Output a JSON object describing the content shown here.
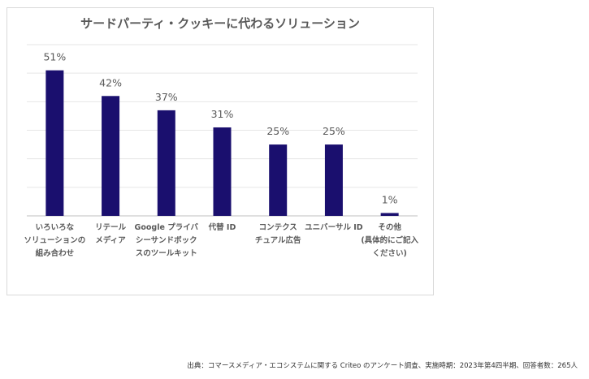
{
  "chart_data": {
    "type": "bar",
    "title": "サードパーティ・クッキーに代わるソリューション",
    "categories": [
      [
        "いろいろな",
        "ソリューションの",
        "組み合わせ"
      ],
      [
        "リテール",
        "メディア"
      ],
      [
        "Google プライバ",
        "シーサンドボック",
        "スのツールキット"
      ],
      [
        "代替 ID"
      ],
      [
        "コンテクス",
        "チュアル広告"
      ],
      [
        "ユニバーサル ID"
      ],
      [
        "その他",
        "(具体的にご記入",
        "ください)"
      ]
    ],
    "values": [
      51,
      42,
      37,
      31,
      25,
      25,
      1
    ],
    "value_labels": [
      "51%",
      "42%",
      "37%",
      "31%",
      "25%",
      "25%",
      "1%"
    ],
    "ylim": [
      0,
      60
    ],
    "grid": true,
    "bar_color": "#1a0f6e",
    "xlabel": "",
    "ylabel": ""
  },
  "source_note": "出典：コマースメディア・エコシステムに関する Criteo のアンケート調査、実施時期：2023年第4四半期、回答者数：265人"
}
